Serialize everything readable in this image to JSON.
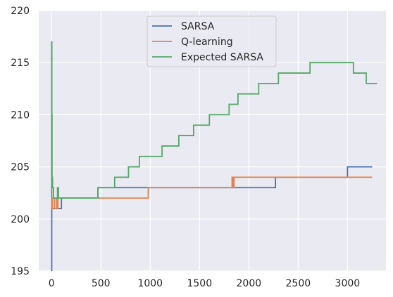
{
  "chart_data": {
    "type": "line",
    "title": "",
    "xlabel": "",
    "ylabel": "",
    "xlim": [
      -130,
      3390
    ],
    "ylim": [
      195,
      220
    ],
    "xticks": [
      0,
      500,
      1000,
      1500,
      2000,
      2500,
      3000
    ],
    "yticks": [
      195,
      200,
      205,
      210,
      215,
      220
    ],
    "xtick_labels": [
      "0",
      "500",
      "1000",
      "1500",
      "2000",
      "2500",
      "3000"
    ],
    "ytick_labels": [
      "195",
      "200",
      "205",
      "210",
      "215",
      "220"
    ],
    "grid": true,
    "legend_position": "upper center",
    "step": true,
    "background": "#eaeaf2",
    "series": [
      {
        "name": "SARSA",
        "color": "#4c72b0",
        "points": [
          [
            0,
            194
          ],
          [
            0,
            195
          ],
          [
            2,
            201
          ],
          [
            10,
            201
          ],
          [
            15,
            201
          ],
          [
            20,
            201
          ],
          [
            40,
            201
          ],
          [
            60,
            201
          ],
          [
            80,
            201
          ],
          [
            100,
            202
          ],
          [
            110,
            202
          ],
          [
            200,
            202
          ],
          [
            300,
            202
          ],
          [
            400,
            202
          ],
          [
            460,
            202
          ],
          [
            470,
            203
          ],
          [
            480,
            203
          ],
          [
            500,
            203
          ],
          [
            600,
            203
          ],
          [
            800,
            203
          ],
          [
            1000,
            203
          ],
          [
            1200,
            203
          ],
          [
            1500,
            203
          ],
          [
            1800,
            203
          ],
          [
            2000,
            203
          ],
          [
            2200,
            203
          ],
          [
            2260,
            203
          ],
          [
            2270,
            204
          ],
          [
            2300,
            204
          ],
          [
            2500,
            204
          ],
          [
            2900,
            204
          ],
          [
            2990,
            204
          ],
          [
            3000,
            205
          ],
          [
            3100,
            205
          ],
          [
            3250,
            205
          ]
        ]
      },
      {
        "name": "Q-learning",
        "color": "#dd8452",
        "points": [
          [
            0,
            203
          ],
          [
            2,
            201
          ],
          [
            8,
            201
          ],
          [
            10,
            202
          ],
          [
            20,
            202
          ],
          [
            30,
            201
          ],
          [
            40,
            201
          ],
          [
            50,
            202
          ],
          [
            60,
            201
          ],
          [
            65,
            202
          ],
          [
            80,
            202
          ],
          [
            100,
            202
          ],
          [
            200,
            202
          ],
          [
            300,
            202
          ],
          [
            400,
            202
          ],
          [
            500,
            202
          ],
          [
            700,
            202
          ],
          [
            900,
            202
          ],
          [
            970,
            202
          ],
          [
            980,
            203
          ],
          [
            1200,
            203
          ],
          [
            1500,
            203
          ],
          [
            1800,
            203
          ],
          [
            1820,
            203
          ],
          [
            1830,
            204
          ],
          [
            1840,
            203
          ],
          [
            1850,
            204
          ],
          [
            2000,
            204
          ],
          [
            2300,
            204
          ],
          [
            2600,
            204
          ],
          [
            3000,
            204
          ],
          [
            3250,
            204
          ]
        ]
      },
      {
        "name": "Expected SARSA",
        "color": "#55a868",
        "points": [
          [
            0,
            202
          ],
          [
            1,
            217
          ],
          [
            3,
            210
          ],
          [
            5,
            204
          ],
          [
            10,
            203
          ],
          [
            20,
            202
          ],
          [
            30,
            202
          ],
          [
            50,
            202
          ],
          [
            60,
            203
          ],
          [
            70,
            202
          ],
          [
            100,
            202
          ],
          [
            200,
            202
          ],
          [
            300,
            202
          ],
          [
            400,
            202
          ],
          [
            460,
            202
          ],
          [
            470,
            203
          ],
          [
            600,
            203
          ],
          [
            640,
            204
          ],
          [
            750,
            204
          ],
          [
            780,
            205
          ],
          [
            870,
            205
          ],
          [
            890,
            206
          ],
          [
            1100,
            206
          ],
          [
            1120,
            207
          ],
          [
            1270,
            207
          ],
          [
            1290,
            208
          ],
          [
            1420,
            208
          ],
          [
            1440,
            209
          ],
          [
            1590,
            209
          ],
          [
            1600,
            210
          ],
          [
            1790,
            210
          ],
          [
            1800,
            211
          ],
          [
            1880,
            211
          ],
          [
            1890,
            212
          ],
          [
            2090,
            212
          ],
          [
            2100,
            213
          ],
          [
            2290,
            213
          ],
          [
            2300,
            214
          ],
          [
            2610,
            214
          ],
          [
            2620,
            215
          ],
          [
            3050,
            215
          ],
          [
            3060,
            214
          ],
          [
            3180,
            214
          ],
          [
            3190,
            213
          ],
          [
            3300,
            213
          ]
        ]
      }
    ]
  }
}
